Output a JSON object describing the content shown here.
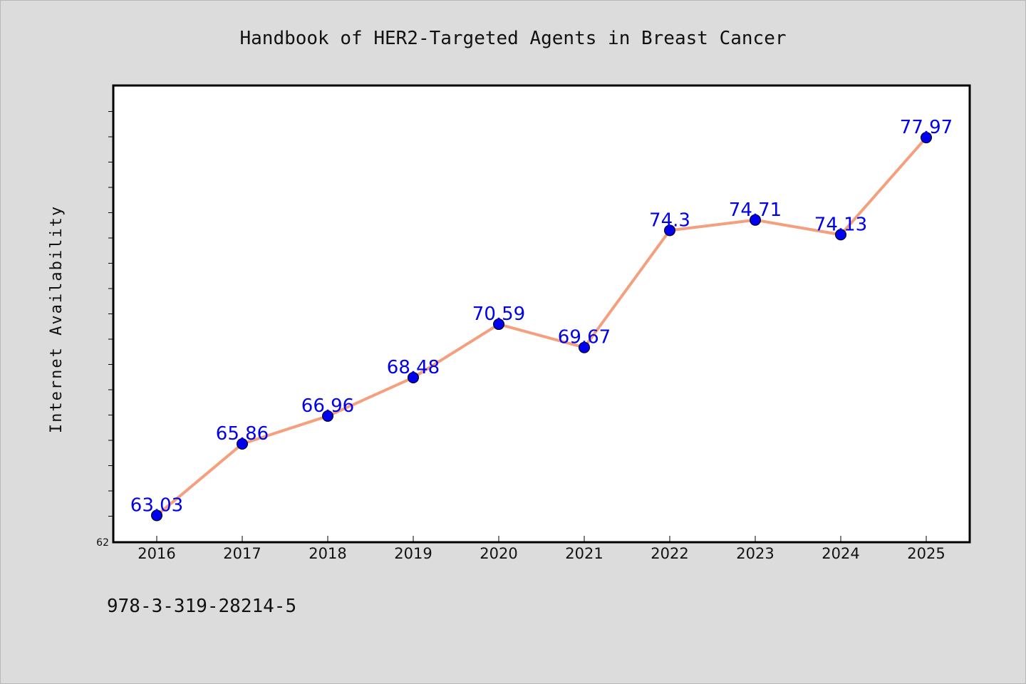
{
  "chart_data": {
    "type": "line",
    "title": "Handbook of HER2-Targeted Agents in Breast Cancer",
    "xlabel": "",
    "ylabel": "Internet Availability",
    "categories": [
      "2016",
      "2017",
      "2018",
      "2019",
      "2020",
      "2021",
      "2022",
      "2023",
      "2024",
      "2025"
    ],
    "values": [
      63.03,
      65.86,
      66.96,
      68.48,
      70.59,
      69.67,
      74.3,
      74.71,
      74.13,
      77.97
    ],
    "ylim": [
      62,
      80
    ],
    "y_tick_labels": [
      "62"
    ],
    "grid": false,
    "legend": "none"
  },
  "colors": {
    "background": "#dcdcdc",
    "plot_area": "#ffffff",
    "line": "#f4a07f",
    "marker": "#0000ee",
    "data_label": "#0000ee"
  },
  "footer": {
    "isbn": "978-3-319-28214-5"
  }
}
